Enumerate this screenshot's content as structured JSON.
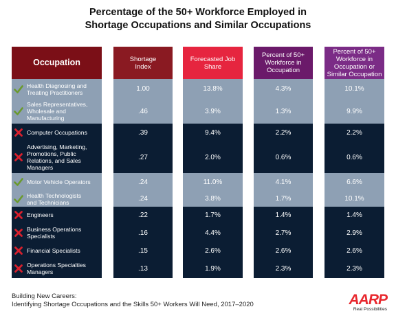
{
  "title": {
    "line1": "Percentage of the 50+ Workforce Employed in",
    "line2": "Shortage Occupations and Similar Occupations"
  },
  "colors": {
    "occupation_header": "#7b0f17",
    "shortage_header": "#8a1a22",
    "forecast_header": "#e6253f",
    "percent_header": "#6b1a6a",
    "similar_header": "#7b2c86",
    "light_row": "#8ea0b4",
    "dark_row": "#0b1d33",
    "check": "#6a9a2c",
    "cross": "#d81f2c"
  },
  "chart_data": {
    "type": "table",
    "title": "Percentage of the 50+ Workforce Employed in Shortage Occupations and Similar Occupations",
    "columns": [
      "Occupation",
      "Shortage Index",
      "Forecasted Job Share",
      "Percent of 50+ Workforce in Occupation",
      "Percent of 50+ Workforce in Occupation or Similar Occupation"
    ],
    "rows": [
      {
        "occupation": "Health Diagnosing and Treating Practitioners",
        "mark": "check",
        "shortage_index": "1.00",
        "forecasted_job_share": "13.8%",
        "percent_in_occupation": "4.3%",
        "percent_similar": "10.1%"
      },
      {
        "occupation": "Sales Representatives, Wholesale and Manufacturing",
        "mark": "check",
        "shortage_index": ".46",
        "forecasted_job_share": "3.9%",
        "percent_in_occupation": "1.3%",
        "percent_similar": "9.9%"
      },
      {
        "occupation": "Computer Occupations",
        "mark": "cross",
        "shortage_index": ".39",
        "forecasted_job_share": "9.4%",
        "percent_in_occupation": "2.2%",
        "percent_similar": "2.2%"
      },
      {
        "occupation": "Advertising, Marketing, Promotions, Public Relations, and Sales Managers",
        "mark": "cross",
        "shortage_index": ".27",
        "forecasted_job_share": "2.0%",
        "percent_in_occupation": "0.6%",
        "percent_similar": "0.6%"
      },
      {
        "occupation": "Motor Vehicle Operators",
        "mark": "check",
        "shortage_index": ".24",
        "forecasted_job_share": "11.0%",
        "percent_in_occupation": "4.1%",
        "percent_similar": "6.6%"
      },
      {
        "occupation": "Health Technologists and Technicians",
        "mark": "check",
        "shortage_index": ".24",
        "forecasted_job_share": "3.8%",
        "percent_in_occupation": "1.7%",
        "percent_similar": "10.1%"
      },
      {
        "occupation": "Engineers",
        "mark": "cross",
        "shortage_index": ".22",
        "forecasted_job_share": "1.7%",
        "percent_in_occupation": "1.4%",
        "percent_similar": "1.4%"
      },
      {
        "occupation": "Business Operations Specialists",
        "mark": "cross",
        "shortage_index": ".16",
        "forecasted_job_share": "4.4%",
        "percent_in_occupation": "2.7%",
        "percent_similar": "2.9%"
      },
      {
        "occupation": "Financial Specialists",
        "mark": "cross",
        "shortage_index": ".15",
        "forecasted_job_share": "2.6%",
        "percent_in_occupation": "2.6%",
        "percent_similar": "2.6%"
      },
      {
        "occupation": "Operations Specialties Managers",
        "mark": "cross",
        "shortage_index": ".13",
        "forecasted_job_share": "1.9%",
        "percent_in_occupation": "2.3%",
        "percent_similar": "2.3%"
      }
    ]
  },
  "header_lines": {
    "occupation": [
      "Occupation"
    ],
    "shortage": [
      "Shortage",
      "Index"
    ],
    "forecast": [
      "Forecasted Job",
      "Share"
    ],
    "percent": [
      "Percent of 50+",
      "Workforce in",
      "Occupation"
    ],
    "similar": [
      "Percent of 50+",
      "Workforce in",
      "Occupation or",
      "Similar Occupation"
    ]
  },
  "label_lines": [
    [
      "Health Diagnosing and",
      "Treating Practitioners"
    ],
    [
      "Sales Representatives,",
      "Wholesale and",
      "Manufacturing"
    ],
    [
      "Computer Occupations"
    ],
    [
      "Advertising, Marketing,",
      "Promotions, Public",
      "Relations, and Sales",
      "Managers"
    ],
    [
      "Motor Vehicle Operators"
    ],
    [
      "Health Technologists",
      "and Technicians"
    ],
    [
      "Engineers"
    ],
    [
      "Business Operations",
      "Specialists"
    ],
    [
      "Financial Specialists"
    ],
    [
      "Operations Specialties",
      "Managers"
    ]
  ],
  "footer": {
    "line1": "Building New Careers:",
    "line2": "Identifying Shortage Occupations and the Skills 50+ Workers Will Need, 2017–2020"
  },
  "logo": {
    "wordmark": "AARP",
    "tagline": "Real Possibilities"
  }
}
